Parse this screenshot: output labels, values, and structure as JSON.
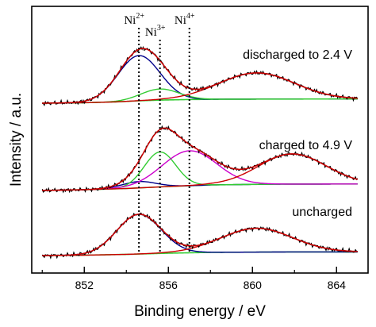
{
  "chart_data": {
    "type": "line",
    "xlabel": "Binding energy / eV",
    "ylabel": "Intensity / a.u.",
    "xlim": [
      849.5,
      865.5
    ],
    "xticks": [
      852,
      856,
      860,
      864
    ],
    "ref_lines": [
      {
        "label": "Ni",
        "sup": "2+",
        "x": 854.6
      },
      {
        "label": "Ni",
        "sup": "3+",
        "x": 855.6
      },
      {
        "label": "Ni",
        "sup": "4+",
        "x": 857.0
      }
    ],
    "traces": [
      {
        "label": "discharged to 2.4 V",
        "baseline": [
          [
            850.0,
            0.0
          ],
          [
            852.0,
            0.6
          ],
          [
            853.5,
            1.6
          ],
          [
            854.6,
            3.0
          ],
          [
            855.8,
            4.0
          ],
          [
            857.0,
            4.6
          ],
          [
            858.5,
            5.0
          ],
          [
            861.0,
            5.2
          ],
          [
            865.0,
            5.3
          ]
        ],
        "components": [
          {
            "color": "#00008b",
            "center": 854.6,
            "height": 57,
            "width": 1.0
          },
          {
            "color": "#33cc33",
            "center": 855.6,
            "height": 14,
            "width": 0.9
          },
          {
            "color": "#cc00cc",
            "center": 857.0,
            "height": 0,
            "width": 1.0
          },
          {
            "color": "#cc0000",
            "center": 860.2,
            "height": 33,
            "width": 1.8
          }
        ]
      },
      {
        "label": "charged to 4.9 V",
        "baseline": [
          [
            850.0,
            0.0
          ],
          [
            852.0,
            1.0
          ],
          [
            854.0,
            2.5
          ],
          [
            856.0,
            5.0
          ],
          [
            858.0,
            7.0
          ],
          [
            861.0,
            8.0
          ],
          [
            865.0,
            8.2
          ]
        ],
        "components": [
          {
            "color": "#00008b",
            "center": 854.6,
            "height": 8,
            "width": 0.8
          },
          {
            "color": "#33cc33",
            "center": 855.6,
            "height": 44,
            "width": 0.75
          },
          {
            "color": "#cc00cc",
            "center": 857.0,
            "height": 44,
            "width": 1.3
          },
          {
            "color": "#cc0000",
            "center": 861.9,
            "height": 38,
            "width": 1.6
          }
        ]
      },
      {
        "label": "uncharged",
        "baseline": [
          [
            850.0,
            0.0
          ],
          [
            852.0,
            0.5
          ],
          [
            854.0,
            1.5
          ],
          [
            856.0,
            3.0
          ],
          [
            858.0,
            4.0
          ],
          [
            861.0,
            4.5
          ],
          [
            865.0,
            4.6
          ]
        ],
        "components": [
          {
            "color": "#00008b",
            "center": 854.6,
            "height": 50,
            "width": 1.05
          },
          {
            "color": "#33cc33",
            "center": 855.6,
            "height": 0,
            "width": 0.8
          },
          {
            "color": "#cc00cc",
            "center": 857.0,
            "height": 0,
            "width": 1.0
          },
          {
            "color": "#cc0000",
            "center": 860.2,
            "height": 30,
            "width": 1.7
          }
        ]
      }
    ],
    "colors": {
      "envelope": "#cc0000",
      "baseline": "#33cc33",
      "raw": "#000000",
      "guide": "#000000"
    },
    "grid": false,
    "legend": "none"
  }
}
